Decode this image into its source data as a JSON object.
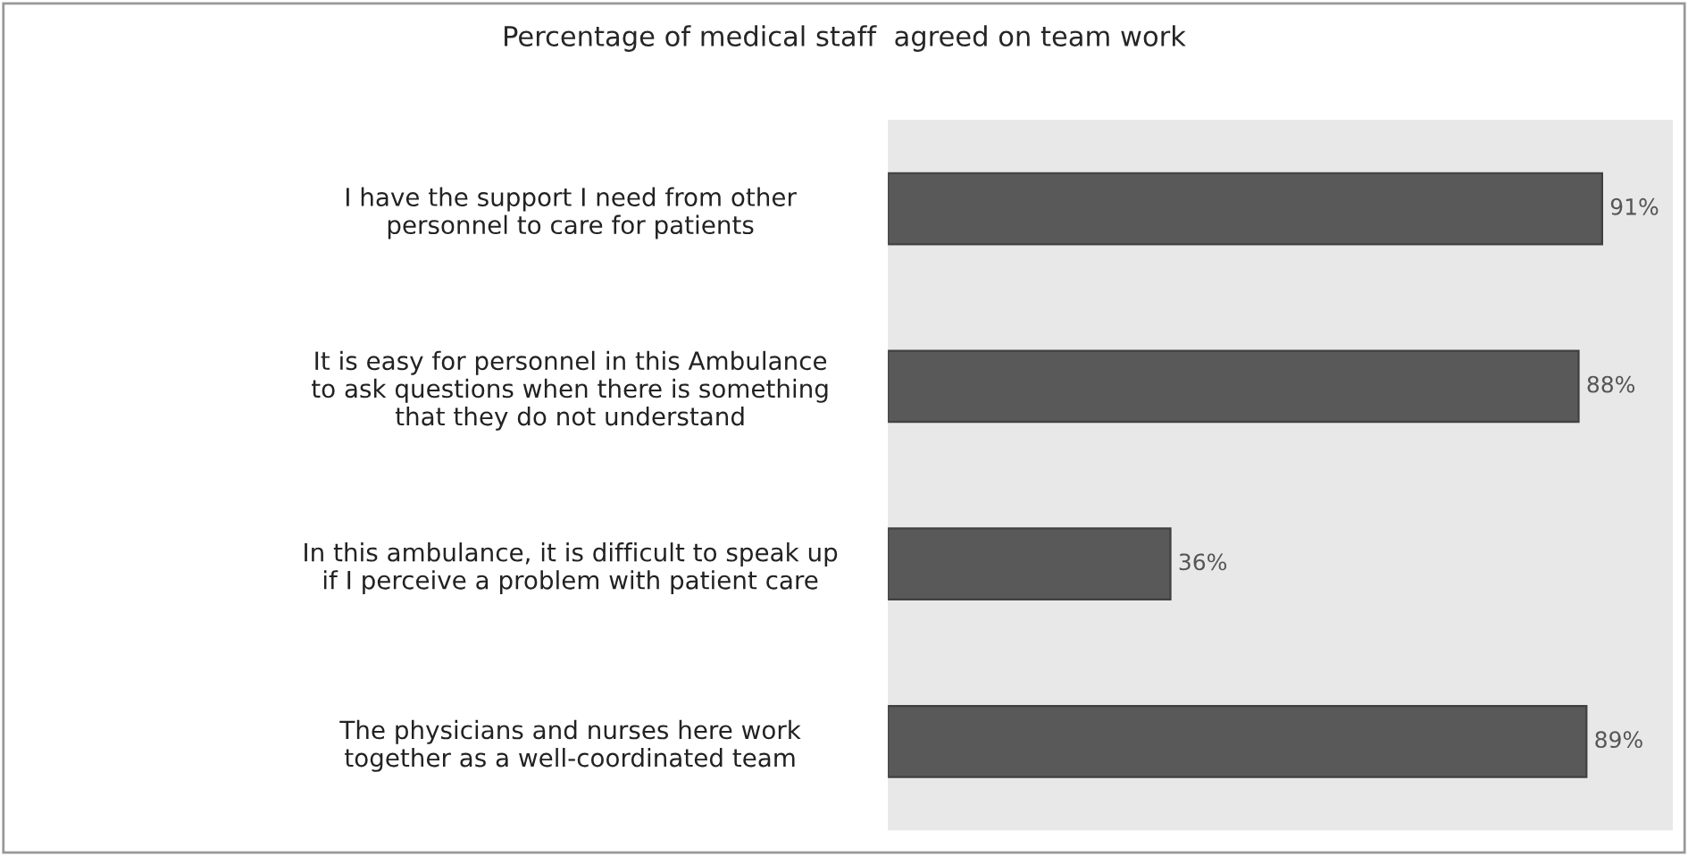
{
  "chart_data": {
    "type": "bar",
    "orientation": "horizontal",
    "title": "Percentage of medical staff  agreed on team work",
    "categories": [
      "I have the support I need from other\npersonnel to care for patients",
      "It is easy for personnel in this Ambulance\nto ask questions when there is something\nthat they do not understand",
      "In this ambulance, it is difficult to speak up\nif I perceive a problem with patient care",
      "The physicians and nurses here work\ntogether as a well-coordinated team"
    ],
    "values": [
      91,
      88,
      36,
      89
    ],
    "value_labels": [
      "91%",
      "88%",
      "36%",
      "89%"
    ],
    "color": "#595959",
    "xlim": [
      0,
      100
    ],
    "tick_labels": "y",
    "grid": false,
    "legend": false
  }
}
